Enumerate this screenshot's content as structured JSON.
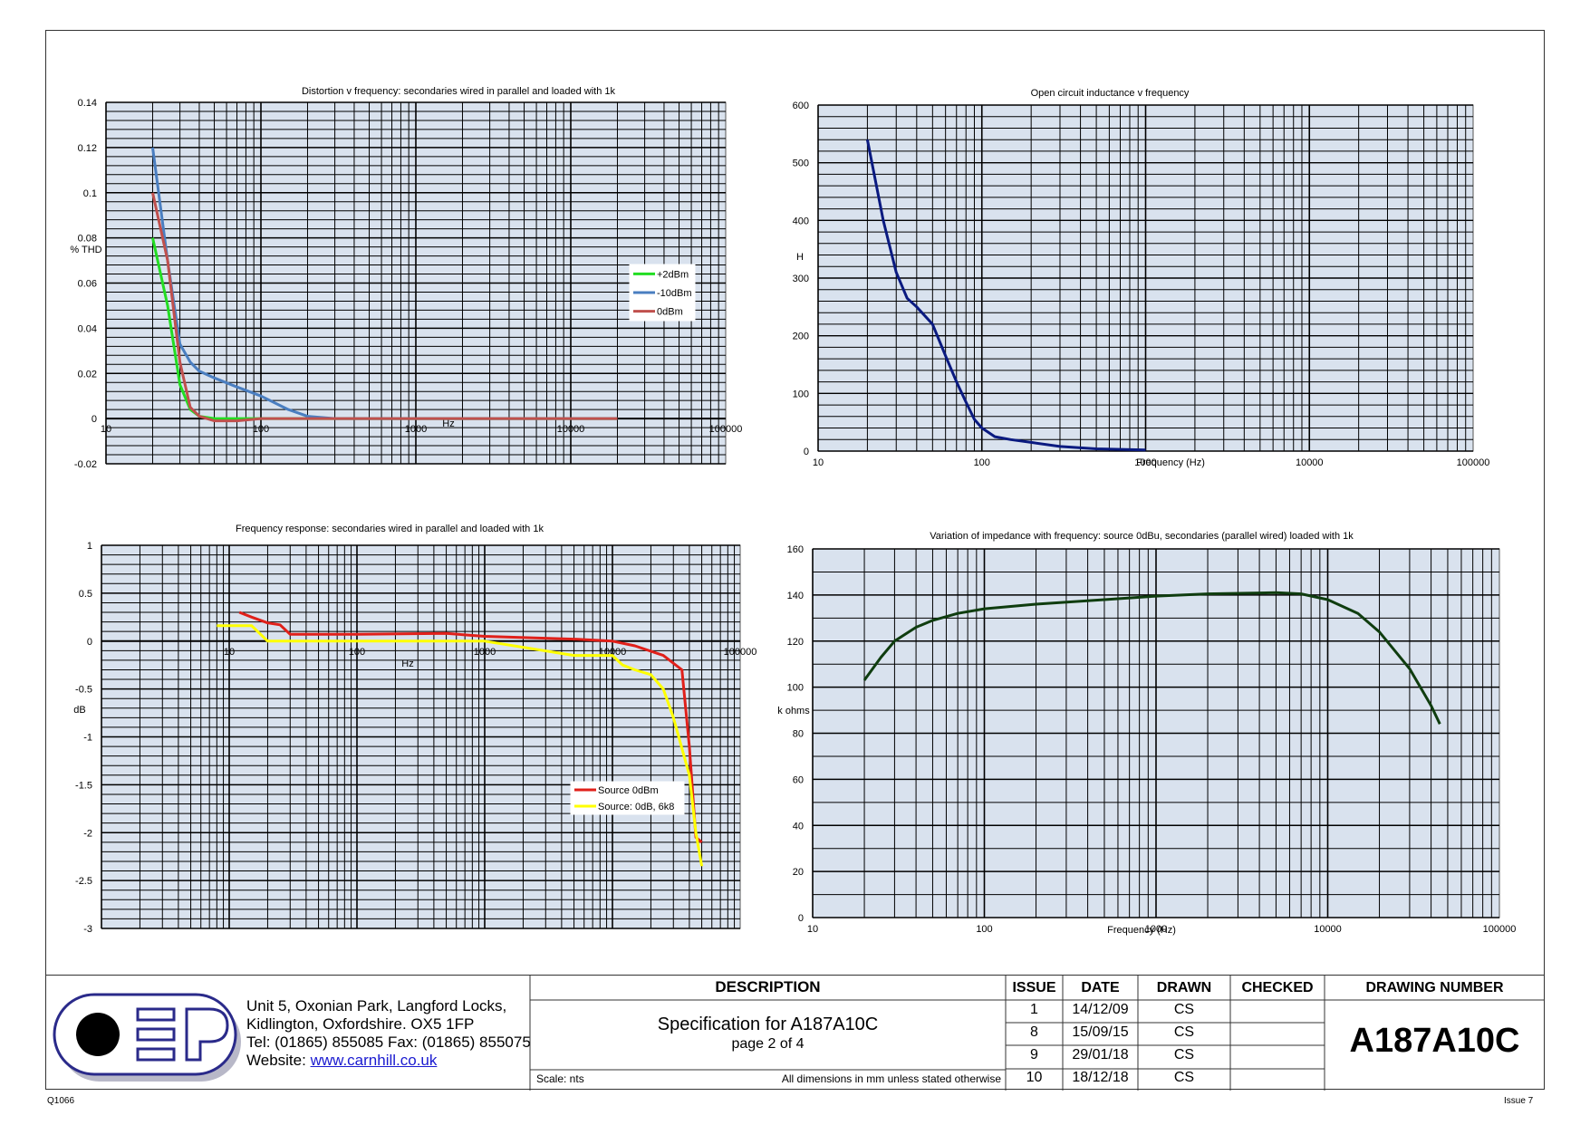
{
  "chart_data": [
    {
      "id": "distortion",
      "type": "line",
      "title": "Distortion v frequency: secondaries wired in parallel and loaded with 1k",
      "xlabel": "Hz",
      "ylabel": "% THD",
      "xscale": "log",
      "xlim": [
        10,
        100000
      ],
      "ylim": [
        -0.02,
        0.14
      ],
      "yticks": [
        0.14,
        0.12,
        0.1,
        0.08,
        0.06,
        0.04,
        0.02,
        0,
        -0.02
      ],
      "ytick_labels": [
        "0.14",
        "0.12",
        "0.1",
        "0.08",
        "0.06",
        "0.04",
        "0.02",
        "0",
        "-0.02"
      ],
      "xticks": [
        10,
        100,
        1000,
        10000,
        100000
      ],
      "xtick_labels": [
        "10",
        "100",
        "1000",
        "10000",
        "100000"
      ],
      "legend": "right",
      "series": [
        {
          "name": "+2dBm",
          "color": "#22dd22",
          "x": [
            20,
            25,
            30,
            35,
            40,
            50,
            70,
            100,
            1000,
            20000
          ],
          "y": [
            0.08,
            0.05,
            0.015,
            0.004,
            0.001,
            0,
            0,
            0,
            0,
            0
          ]
        },
        {
          "name": "-10dBm",
          "color": "#4a7ec0",
          "x": [
            20,
            25,
            30,
            35,
            40,
            50,
            70,
            100,
            150,
            200,
            300,
            1000,
            20000
          ],
          "y": [
            0.12,
            0.07,
            0.033,
            0.025,
            0.021,
            0.018,
            0.014,
            0.01,
            0.004,
            0.001,
            0,
            0,
            0
          ]
        },
        {
          "name": "0dBm",
          "color": "#c0504d",
          "x": [
            20,
            25,
            30,
            35,
            40,
            50,
            70,
            100,
            1000,
            20000
          ],
          "y": [
            0.1,
            0.07,
            0.025,
            0.005,
            0.001,
            -0.001,
            -0.001,
            0,
            0,
            0
          ]
        }
      ]
    },
    {
      "id": "inductance",
      "type": "line",
      "title": "Open circuit inductance v frequency",
      "xlabel": "Frequency (Hz)",
      "ylabel": "H",
      "xscale": "log",
      "xlim": [
        10,
        100000
      ],
      "ylim": [
        0,
        600
      ],
      "yticks": [
        600,
        500,
        400,
        300,
        200,
        100,
        0
      ],
      "ytick_labels": [
        "600",
        "500",
        "400",
        "300",
        "200",
        "100",
        "0"
      ],
      "xticks": [
        10,
        100,
        1000,
        10000,
        100000
      ],
      "xtick_labels": [
        "10",
        "100",
        "1000",
        "10000",
        "100000"
      ],
      "series": [
        {
          "color": "#0a1a80",
          "x": [
            20,
            25,
            30,
            35,
            40,
            50,
            60,
            70,
            80,
            90,
            100,
            120,
            150,
            200,
            300,
            500,
            1000
          ],
          "y": [
            540,
            400,
            310,
            265,
            250,
            220,
            165,
            120,
            85,
            55,
            40,
            25,
            20,
            15,
            8,
            4,
            2
          ]
        }
      ]
    },
    {
      "id": "frequency-response",
      "type": "line",
      "title": "Frequency response: secondaries wired in parallel and loaded with 1k",
      "xlabel": "Hz",
      "ylabel": "dB",
      "xscale": "log",
      "xlim": [
        1,
        100000
      ],
      "ylim": [
        -3,
        1
      ],
      "yticks": [
        1,
        0.5,
        0,
        -0.5,
        -1,
        -1.5,
        -2,
        -2.5,
        -3
      ],
      "ytick_labels": [
        "1",
        "0.5",
        "0",
        "-0.5",
        "-1",
        "-1.5",
        "-2",
        "-2.5",
        "-3"
      ],
      "xticks": [
        10,
        100,
        1000,
        10000,
        100000
      ],
      "xtick_labels": [
        "10",
        "100",
        "1000",
        "10000",
        "100000"
      ],
      "legend": "bottom-right",
      "series": [
        {
          "name": "Source 0dBm",
          "color": "#e0201a",
          "x": [
            12,
            15,
            20,
            25,
            30,
            100,
            500,
            1000,
            5000,
            10000,
            15000,
            25000,
            35000,
            40000,
            45000,
            50000
          ],
          "y": [
            0.3,
            0.25,
            0.19,
            0.17,
            0.07,
            0.07,
            0.08,
            0.05,
            0.02,
            0.0,
            -0.05,
            -0.15,
            -0.3,
            -1.1,
            -2.05,
            -2.1
          ]
        },
        {
          "name": "Source: 0dB, 6k8",
          "color": "#ffff00",
          "x": [
            8,
            10,
            15,
            20,
            30,
            100,
            500,
            1000,
            5000,
            10000,
            12000,
            15000,
            20000,
            25000,
            30000,
            40000,
            45000,
            50000
          ],
          "y": [
            0.16,
            0.16,
            0.16,
            0.0,
            0.0,
            0.0,
            0.0,
            0.0,
            -0.15,
            -0.15,
            -0.25,
            -0.3,
            -0.35,
            -0.5,
            -0.8,
            -1.4,
            -2.0,
            -2.35
          ]
        }
      ]
    },
    {
      "id": "impedance",
      "type": "line",
      "title": "Variation of impedance with frequency: source 0dBu, secondaries (parallel wired) loaded with 1k",
      "xlabel": "Frequency (Hz)",
      "ylabel": "k ohms",
      "xscale": "log",
      "xlim": [
        10,
        100000
      ],
      "ylim": [
        0,
        160
      ],
      "yticks": [
        160,
        140,
        120,
        100,
        80,
        60,
        40,
        20,
        0
      ],
      "ytick_labels": [
        "160",
        "140",
        "120",
        "100",
        "80",
        "60",
        "40",
        "20",
        "0"
      ],
      "xticks": [
        10,
        100,
        1000,
        10000,
        100000
      ],
      "xtick_labels": [
        "10",
        "100",
        "1000",
        "10000",
        "100000"
      ],
      "series": [
        {
          "color": "#0f3d0f",
          "x": [
            20,
            25,
            30,
            40,
            50,
            70,
            100,
            200,
            500,
            1000,
            2000,
            5000,
            7000,
            10000,
            15000,
            20000,
            30000,
            40000,
            45000
          ],
          "y": [
            103,
            113,
            120,
            126,
            129,
            132,
            134,
            136,
            138,
            139.5,
            140.5,
            141,
            140.5,
            138,
            132,
            124,
            108,
            92,
            84
          ]
        }
      ]
    }
  ],
  "titleblock": {
    "address": [
      "Unit 5, Oxonian Park, Langford Locks,",
      "Kidlington, Oxfordshire.  OX5 1FP",
      "Tel: (01865) 855085 Fax: (01865) 855075"
    ],
    "website_label": "Website: ",
    "website": "www.carnhill.co.uk",
    "description_header": "DESCRIPTION",
    "description_line1": "Specification for A187A10C",
    "description_line2": "page 2 of 4",
    "scale": "Scale: nts",
    "dimensions_note": "All dimensions in mm unless stated otherwise",
    "headers": {
      "issue": "ISSUE",
      "date": "DATE",
      "drawn": "DRAWN",
      "checked": "CHECKED",
      "drawing_number": "DRAWING NUMBER"
    },
    "revisions": [
      {
        "issue": "1",
        "date": "14/12/09",
        "drawn": "CS",
        "checked": ""
      },
      {
        "issue": "8",
        "date": "15/09/15",
        "drawn": "CS",
        "checked": ""
      },
      {
        "issue": "9",
        "date": "29/01/18",
        "drawn": "CS",
        "checked": ""
      },
      {
        "issue": "10",
        "date": "18/12/18",
        "drawn": "CS",
        "checked": ""
      }
    ],
    "drawing_number": "A187A10C"
  },
  "footer": {
    "left": "Q1066",
    "right": "Issue 7"
  },
  "colors": {
    "plot_bg": "#d9e2ee",
    "grid": "#000000",
    "logo_outline": "#2a2a8a"
  }
}
